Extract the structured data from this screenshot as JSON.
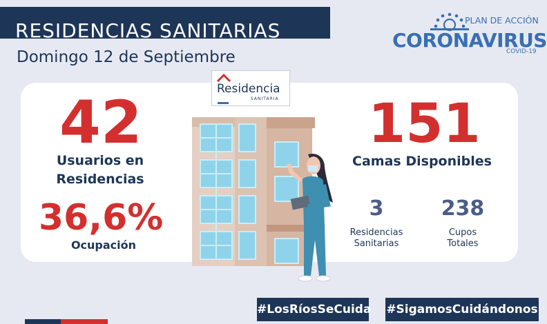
{
  "header": {
    "title": "RESIDENCIAS SANITARIAS",
    "date": "Domingo 12 de Septiembre"
  },
  "logo": {
    "top": "PLAN DE ACCIÓN",
    "main": "CORONAVIRUS",
    "sub": "COVID-19"
  },
  "sign": {
    "name": "Residencia",
    "sub": "SANITARIA"
  },
  "stats": {
    "usuarios_value": "42",
    "usuarios_label_1": "Usuarios en",
    "usuarios_label_2": "Residencias",
    "ocupacion_value": "36,6%",
    "ocupacion_label": "Ocupación",
    "camas_value": "151",
    "camas_label": "Camas Disponibles",
    "residencias_value": "3",
    "residencias_label_1": "Residencias",
    "residencias_label_2": "Sanitarias",
    "cupos_value": "238",
    "cupos_label_1": "Cupos",
    "cupos_label_2": "Totales"
  },
  "hashtags": {
    "left": "#LosRíosSeCuida",
    "right": "#SigamosCuidándonos"
  },
  "colors": {
    "navy": "#1d3557",
    "red": "#d32f2f",
    "logo_blue": "#3a6fb0",
    "background": "#e6e9f2"
  }
}
